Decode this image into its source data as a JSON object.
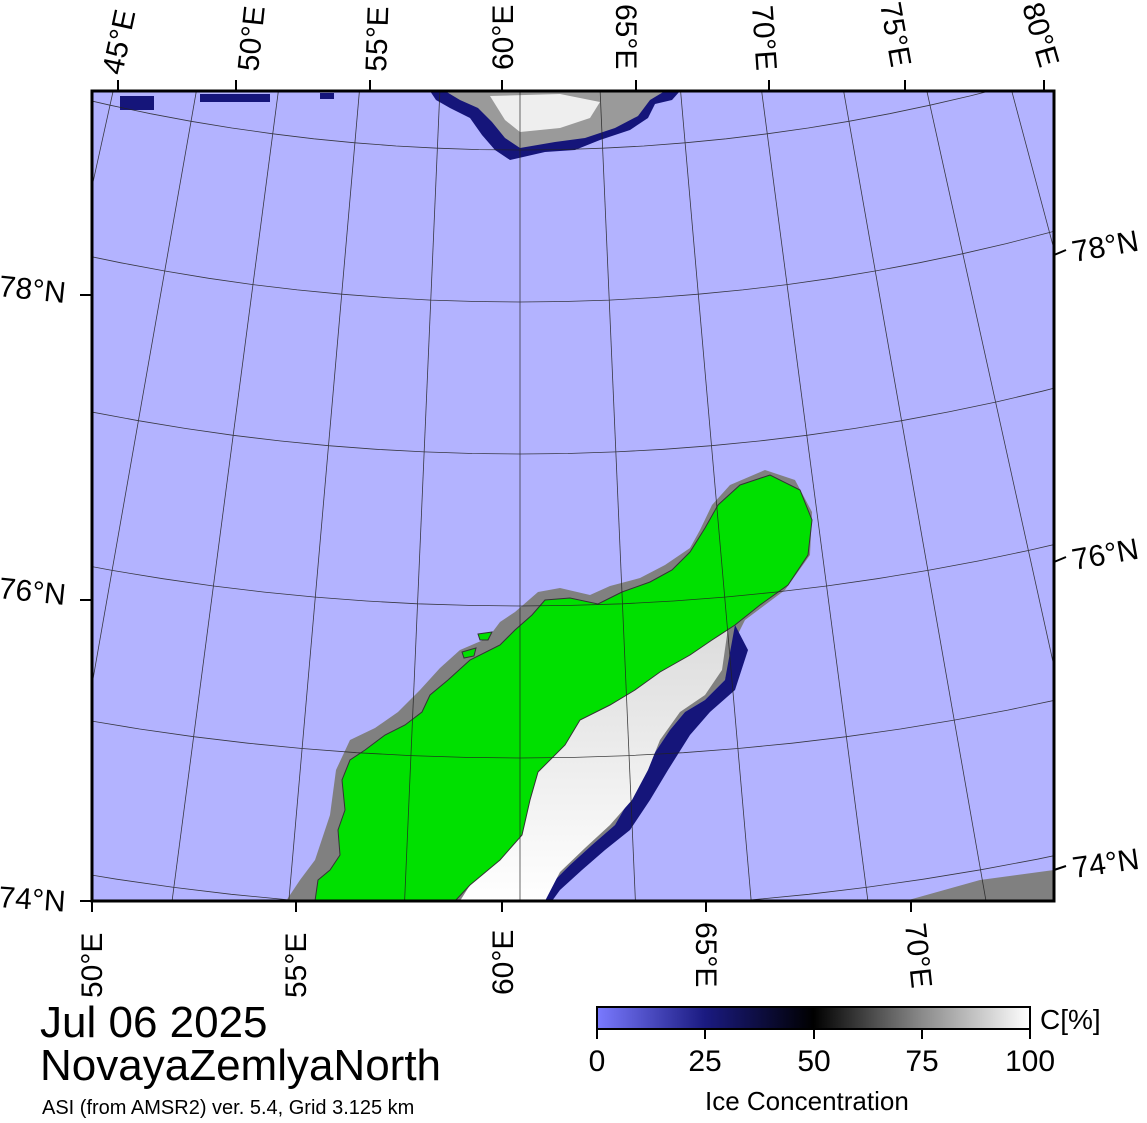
{
  "title": {
    "date": "Jul 06 2025",
    "region": "NovayaZemlyaNorth",
    "product": "ASI (from AMSR2) ver. 5.4,  Grid 3.125 km"
  },
  "axes": {
    "top_lon_labels": [
      "45°E",
      "50°E",
      "55°E",
      "60°E",
      "65°E",
      "70°E",
      "75°E",
      "80°E"
    ],
    "bottom_lon_labels": [
      "50°E",
      "55°E",
      "60°E",
      "65°E",
      "70°E"
    ],
    "left_lat_labels": [
      "78°N",
      "76°N",
      "74°N"
    ],
    "right_lat_labels": [
      "78°N",
      "76°N",
      "74°N"
    ]
  },
  "colorbar": {
    "title": "Ice Concentration",
    "unit": "C[%]",
    "ticks": [
      "0",
      "25",
      "50",
      "75",
      "100"
    ],
    "range": [
      0,
      100
    ]
  },
  "colors": {
    "open_water": "#b3b3ff",
    "land": "#00e000",
    "coast_mask": "#808080",
    "ice_low": "#1a1a80",
    "ice_high": "#ffffff"
  }
}
